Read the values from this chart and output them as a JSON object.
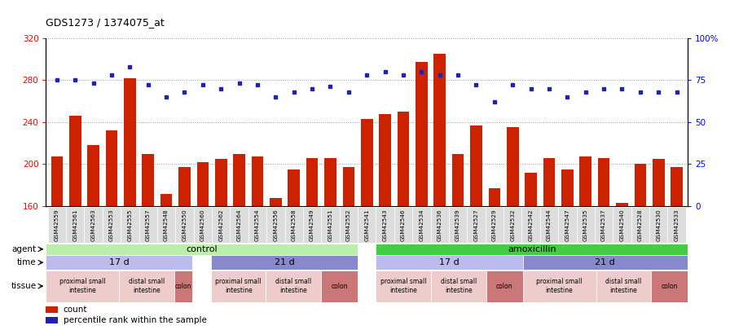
{
  "title": "GDS1273 / 1374075_at",
  "ylim_left": [
    160,
    320
  ],
  "ylim_right": [
    0,
    100
  ],
  "yticks_left": [
    160,
    200,
    240,
    280,
    320
  ],
  "yticks_right": [
    0,
    25,
    50,
    75,
    100
  ],
  "ytick_labels_right": [
    "0",
    "25",
    "50",
    "75",
    "100%"
  ],
  "samples": [
    "GSM42559",
    "GSM42561",
    "GSM42563",
    "GSM42553",
    "GSM42555",
    "GSM42557",
    "GSM42548",
    "GSM42550",
    "GSM42560",
    "GSM42562",
    "GSM42564",
    "GSM42554",
    "GSM42556",
    "GSM42558",
    "GSM42549",
    "GSM42551",
    "GSM42552",
    "GSM42541",
    "GSM42543",
    "GSM42546",
    "GSM42534",
    "GSM42536",
    "GSM42539",
    "GSM42527",
    "GSM42529",
    "GSM42532",
    "GSM42542",
    "GSM42544",
    "GSM42547",
    "GSM42535",
    "GSM42537",
    "GSM42540",
    "GSM42528",
    "GSM42530",
    "GSM42533"
  ],
  "bar_values": [
    207,
    246,
    218,
    232,
    282,
    210,
    172,
    197,
    202,
    205,
    210,
    207,
    168,
    195,
    206,
    206,
    197,
    243,
    248,
    250,
    297,
    305,
    210,
    237,
    177,
    235,
    192,
    206,
    195,
    207,
    206,
    163,
    200,
    205,
    197
  ],
  "dot_values": [
    75,
    75,
    73,
    78,
    83,
    72,
    65,
    68,
    72,
    70,
    73,
    72,
    65,
    68,
    70,
    71,
    68,
    78,
    80,
    78,
    80,
    78,
    78,
    72,
    62,
    72,
    70,
    70,
    65,
    68,
    70,
    70,
    68,
    68,
    68
  ],
  "bar_color": "#cc2200",
  "dot_color": "#2222aa",
  "grid_color": "#999999",
  "bg_color": "#ffffff",
  "plot_bg": "#ffffff",
  "agent_control_color": "#bbeeaa",
  "agent_amoxicillin_color": "#44cc44",
  "time_color_17": "#bbbbee",
  "time_color_21": "#8888cc",
  "tissue_color_proximal": "#eecccc",
  "tissue_color_distal": "#eecccc",
  "tissue_color_colon": "#cc7777",
  "tissue_segments": [
    {
      "label": "proximal small\nintestine",
      "start": 0,
      "end": 4,
      "color": "#eecccc"
    },
    {
      "label": "distal small\nintestine",
      "start": 4,
      "end": 7,
      "color": "#eecccc"
    },
    {
      "label": "colon",
      "start": 7,
      "end": 8,
      "color": "#cc7777"
    },
    {
      "label": "proximal small\nintestine",
      "start": 9,
      "end": 12,
      "color": "#eecccc"
    },
    {
      "label": "distal small\nintestine",
      "start": 12,
      "end": 15,
      "color": "#eecccc"
    },
    {
      "label": "colon",
      "start": 15,
      "end": 17,
      "color": "#cc7777"
    },
    {
      "label": "proximal small\nintestine",
      "start": 18,
      "end": 21,
      "color": "#eecccc"
    },
    {
      "label": "distal small\nintestine",
      "start": 21,
      "end": 24,
      "color": "#eecccc"
    },
    {
      "label": "colon",
      "start": 24,
      "end": 26,
      "color": "#cc7777"
    },
    {
      "label": "proximal small\nintestine",
      "start": 26,
      "end": 30,
      "color": "#eecccc"
    },
    {
      "label": "distal small\nintestine",
      "start": 30,
      "end": 33,
      "color": "#eecccc"
    },
    {
      "label": "colon",
      "start": 33,
      "end": 35,
      "color": "#cc7777"
    }
  ],
  "time_segments": [
    {
      "label": "17 d",
      "start": 0,
      "end": 8
    },
    {
      "label": "21 d",
      "start": 9,
      "end": 17
    },
    {
      "label": "17 d",
      "start": 18,
      "end": 26
    },
    {
      "label": "21 d",
      "start": 26,
      "end": 35
    }
  ],
  "agent_segments": [
    {
      "label": "control",
      "start": 0,
      "end": 17
    },
    {
      "label": "amoxicillin",
      "start": 18,
      "end": 35
    }
  ]
}
